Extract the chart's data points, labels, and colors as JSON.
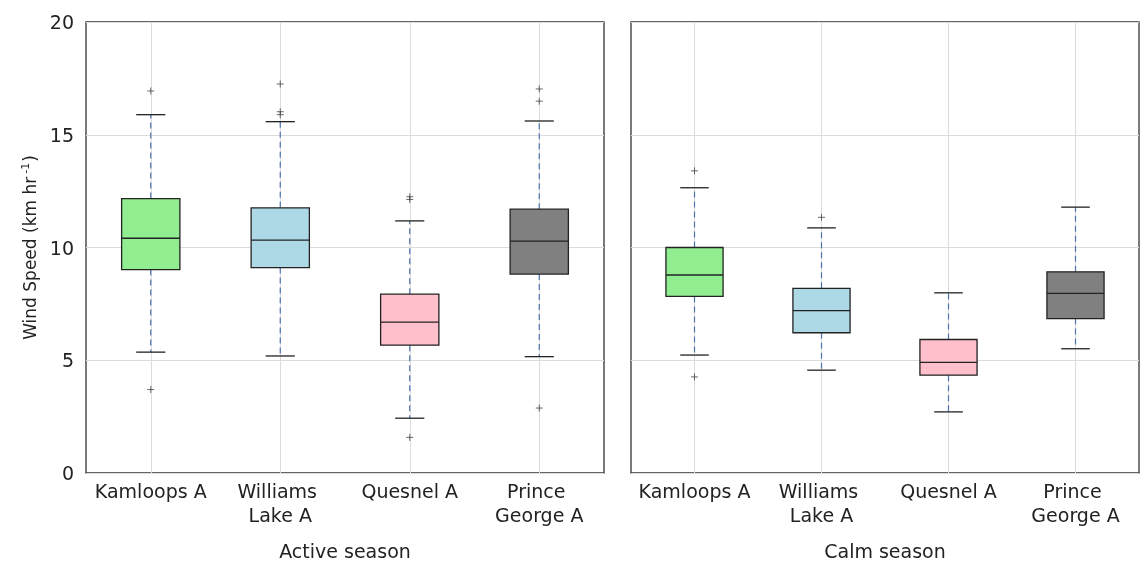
{
  "chart_data": [
    {
      "type": "box",
      "xlabel": "Active season",
      "ylabel": "Wind Speed (km hr$^{-1}$)",
      "categories": [
        "Kamloops A",
        "Williams Lake A",
        "Quesnel A",
        "Prince George A"
      ],
      "colors": [
        "#90ee90",
        "#add8e6",
        "#ffc0cb",
        "#808080"
      ],
      "ylim": [
        0,
        20
      ],
      "yticks": [
        0,
        5,
        10,
        15,
        20
      ],
      "grid": true,
      "marker": "cross",
      "line_style": "dashed",
      "boxes": [
        {
          "low": 5.36,
          "q1": 9.02,
          "median": 10.41,
          "q3": 12.17,
          "high": 15.89,
          "outliers": [
            16.94,
            3.7
          ]
        },
        {
          "low": 5.19,
          "q1": 9.11,
          "median": 10.33,
          "q3": 11.76,
          "high": 15.58,
          "outliers": [
            17.25,
            16.02,
            15.89
          ]
        },
        {
          "low": 2.43,
          "q1": 5.67,
          "median": 6.69,
          "q3": 7.93,
          "high": 11.18,
          "outliers": [
            12.25,
            12.13,
            1.58
          ]
        },
        {
          "low": 5.16,
          "q1": 8.82,
          "median": 10.28,
          "q3": 11.7,
          "high": 15.61,
          "outliers": [
            17.03,
            16.49,
            2.88
          ]
        }
      ]
    },
    {
      "type": "box",
      "xlabel": "Calm season",
      "categories": [
        "Kamloops A",
        "Williams Lake A",
        "Quesnel A",
        "Prince George A"
      ],
      "colors": [
        "#90ee90",
        "#add8e6",
        "#ffc0cb",
        "#808080"
      ],
      "ylim": [
        0,
        20
      ],
      "yticks": [
        0,
        5,
        10,
        15,
        20
      ],
      "grid": true,
      "marker": "cross",
      "line_style": "dashed",
      "tick_labels": "x",
      "boxes": [
        {
          "low": 5.23,
          "q1": 7.83,
          "median": 8.78,
          "q3": 10.0,
          "high": 12.65,
          "outliers": [
            13.4,
            4.26
          ]
        },
        {
          "low": 4.56,
          "q1": 6.22,
          "median": 7.2,
          "q3": 8.19,
          "high": 10.87,
          "outliers": [
            11.34
          ]
        },
        {
          "low": 2.71,
          "q1": 4.34,
          "median": 4.91,
          "q3": 5.92,
          "high": 7.99
        },
        {
          "low": 5.51,
          "q1": 6.85,
          "median": 7.97,
          "q3": 8.92,
          "high": 11.79
        }
      ]
    }
  ]
}
